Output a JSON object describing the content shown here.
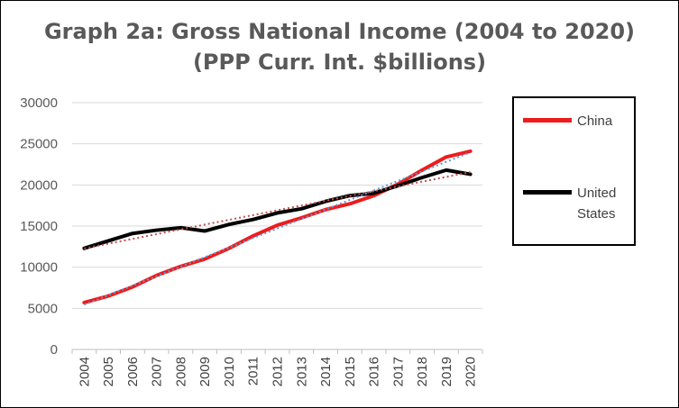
{
  "chart_data": {
    "type": "line",
    "title": "Graph 2a:  Gross National Income (2004 to 2020)",
    "subtitle": "(PPP Curr. Int. $billions)",
    "categories": [
      "2004",
      "2005",
      "2006",
      "2007",
      "2008",
      "2009",
      "2010",
      "2011",
      "2012",
      "2013",
      "2014",
      "2015",
      "2016",
      "2017",
      "2018",
      "2019",
      "2020"
    ],
    "ylim": [
      0,
      30000
    ],
    "yticks": [
      0,
      5000,
      10000,
      15000,
      20000,
      25000,
      30000
    ],
    "xlabel": "",
    "ylabel": "",
    "grid": true,
    "legend_position": "right",
    "series": [
      {
        "name": "China",
        "color": "#ee1c1c",
        "trendline_color": "#5b9bd5",
        "values": [
          5700,
          6500,
          7600,
          9000,
          10100,
          11000,
          12300,
          13800,
          15100,
          16000,
          17000,
          17700,
          18700,
          20100,
          21800,
          23400,
          24100
        ]
      },
      {
        "name": "United States",
        "color": "#000000",
        "trendline_color": "#c0504d",
        "values": [
          12300,
          13200,
          14100,
          14500,
          14800,
          14400,
          15200,
          15800,
          16600,
          17100,
          18000,
          18700,
          19000,
          19900,
          20900,
          21800,
          21300
        ]
      }
    ]
  }
}
